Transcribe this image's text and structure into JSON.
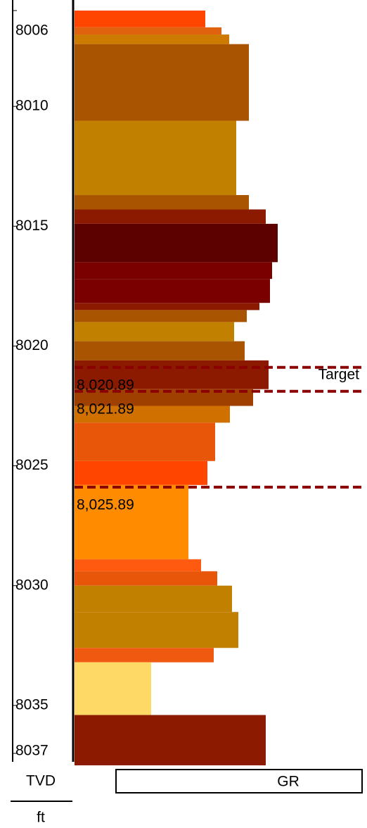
{
  "chart_data": {
    "type": "log-track",
    "track_name": "GR",
    "depth_label": "TVD",
    "depth_unit": "ft",
    "ylim": [
      8006,
      8037.5
    ],
    "yticks": [
      8006,
      8010,
      8015,
      8020,
      8025,
      8030,
      8035,
      8037
    ],
    "xlim": [
      0,
      409
    ],
    "tops": [
      8006.0,
      8006.7,
      8007.0,
      8007.4,
      8010.6,
      8013.7,
      8014.3,
      8014.9,
      8016.5,
      8017.2,
      8018.2,
      8018.5,
      8019.0,
      8019.8,
      8020.6,
      8021.8,
      8022.5,
      8023.2,
      8024.8,
      8025.8,
      8028.9,
      8029.4,
      8030.0,
      8031.1,
      8032.6,
      8033.2,
      8035.4
    ],
    "bases": [
      8006.7,
      8007.0,
      8007.4,
      8010.6,
      8013.7,
      8014.3,
      8014.9,
      8016.5,
      8017.2,
      8018.2,
      8018.5,
      8019.0,
      8019.8,
      8020.6,
      8021.8,
      8022.5,
      8023.2,
      8024.8,
      8025.8,
      8028.9,
      8029.4,
      8030.0,
      8031.1,
      8032.6,
      8033.2,
      8035.4,
      8037.5
    ],
    "values": [
      186,
      209,
      220,
      248,
      230,
      248,
      272,
      289,
      281,
      278,
      263,
      245,
      227,
      242,
      276,
      254,
      221,
      200,
      189,
      162,
      180,
      203,
      224,
      233,
      198,
      109,
      272
    ],
    "colors": [
      "#ff4500",
      "#e0620f",
      "#cc7a00",
      "#a85400",
      "#c28000",
      "#a85400",
      "#8b1a00",
      "#5c0000",
      "#7a0000",
      "#7a0000",
      "#8b1a00",
      "#a85400",
      "#c28000",
      "#a85400",
      "#8b1a00",
      "#a04000",
      "#d07000",
      "#e8560a",
      "#ff4500",
      "#ff8c00",
      "#ff5a10",
      "#e8560a",
      "#c28000",
      "#c28000",
      "#f05a10",
      "#ffd966",
      "#8b1a00"
    ],
    "markers": [
      {
        "value": 8020.89,
        "label": "8,020.89"
      },
      {
        "value": 8021.89,
        "label": "8,021.89"
      },
      {
        "value": 8025.89,
        "label": "8,025.89"
      }
    ],
    "marker_color": "#8b0000",
    "target_label": "Target"
  }
}
